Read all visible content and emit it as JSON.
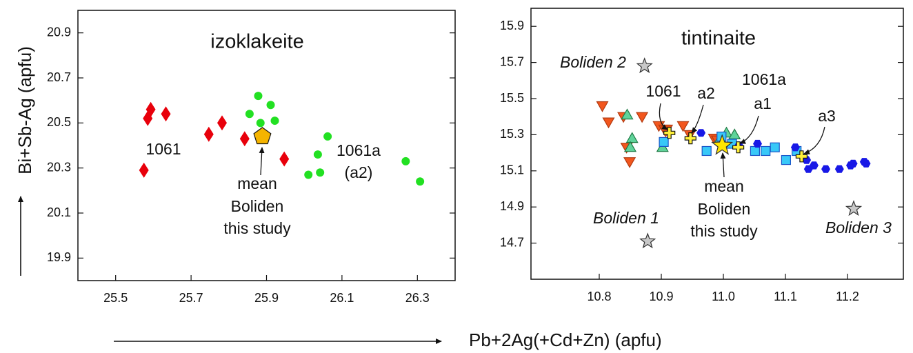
{
  "axis_labels": {
    "x": "Pb+2Ag(+Cd+Zn) (apfu)",
    "y": "Bi+Sb-Ag (apfu)"
  },
  "chart_data": [
    {
      "type": "scatter",
      "title": "izoklakeite",
      "xlim": [
        25.4,
        26.4
      ],
      "ylim": [
        19.8,
        21.0
      ],
      "xticks": [
        25.5,
        25.7,
        25.9,
        26.1,
        26.3
      ],
      "yticks": [
        19.9,
        20.1,
        20.3,
        20.5,
        20.7,
        20.9
      ],
      "series": [
        {
          "marker": "diamond",
          "color": "#e8000b",
          "x": [
            25.575,
            25.585,
            25.593,
            25.633,
            25.747,
            25.782,
            25.842,
            25.947
          ],
          "y": [
            20.29,
            20.52,
            20.56,
            20.54,
            20.45,
            20.5,
            20.43,
            20.34
          ]
        },
        {
          "marker": "circle",
          "color": "#22e022",
          "x": [
            25.878,
            25.855,
            25.911,
            25.884,
            25.922,
            26.062,
            26.036,
            26.011,
            26.042,
            26.269,
            26.307
          ],
          "y": [
            20.62,
            20.54,
            20.58,
            20.5,
            20.51,
            20.44,
            20.36,
            20.27,
            20.28,
            20.33,
            20.24
          ]
        },
        {
          "marker": "pentagon",
          "color": "#f5b400",
          "x": [
            25.889
          ],
          "y": [
            20.44
          ]
        }
      ],
      "annotations": [
        "1061",
        "1061a",
        "(a2)",
        "mean",
        "Boliden",
        "this study"
      ]
    },
    {
      "type": "scatter",
      "title": "tintinaite",
      "xlim": [
        10.69,
        11.29
      ],
      "ylim": [
        14.5,
        16.0
      ],
      "xticks": [
        10.8,
        10.9,
        {
          "value": 11,
          "label": "11.0"
        },
        11.1,
        11.2
      ],
      "yticks": [
        14.7,
        14.9,
        15.1,
        15.3,
        15.5,
        15.7,
        15.9
      ],
      "series": [
        {
          "marker": "tri-down",
          "color": "#f2561d",
          "x": [
            10.805,
            10.815,
            10.839,
            10.869,
            10.896,
            10.905,
            10.909,
            10.935,
            10.849,
            10.844,
            10.946,
            10.985,
            10.99,
            10.907
          ],
          "y": [
            15.46,
            15.37,
            15.4,
            15.4,
            15.35,
            15.33,
            15.33,
            15.35,
            15.15,
            15.23,
            15.3,
            15.28,
            15.27,
            15.32
          ]
        },
        {
          "marker": "tri-up",
          "color": "#5fd39a",
          "x": [
            10.845,
            10.853,
            10.85,
            10.902,
            11.005,
            11.018,
            10.995
          ],
          "y": [
            15.41,
            15.28,
            15.23,
            15.23,
            15.31,
            15.3,
            15.28
          ]
        },
        {
          "marker": "square",
          "color": "#38c8f8",
          "x": [
            10.904,
            10.973,
            10.997,
            11.051,
            11.068,
            11.083,
            11.101,
            11.118,
            11.014
          ],
          "y": [
            15.26,
            15.21,
            15.29,
            15.21,
            15.21,
            15.23,
            15.16,
            15.21,
            15.25
          ]
        },
        {
          "marker": "hexagon",
          "color": "#1818e6",
          "x": [
            10.964,
            11.025,
            11.055,
            11.116,
            11.134,
            11.146,
            11.165,
            11.187,
            11.205,
            11.209,
            11.227,
            11.23,
            11.137
          ],
          "y": [
            15.31,
            15.24,
            15.25,
            15.23,
            15.16,
            15.13,
            15.11,
            15.11,
            15.13,
            15.14,
            15.15,
            15.14,
            15.11
          ]
        },
        {
          "marker": "cross",
          "color": "#fff03a",
          "x": [
            10.913,
            10.947,
            11.024,
            11.126
          ],
          "y": [
            15.31,
            15.28,
            15.23,
            15.18
          ]
        },
        {
          "marker": "star",
          "color": "#ffe600",
          "x": [
            10.998
          ],
          "y": [
            15.24
          ]
        },
        {
          "marker": "star",
          "color": "#c8c8c8",
          "x": [
            10.873,
            10.878,
            11.21
          ],
          "y": [
            15.68,
            14.71,
            14.89
          ]
        }
      ],
      "annotations": [
        "Boliden 2",
        "Boliden 1",
        "Boliden 3",
        "1061",
        "a2",
        "1061a",
        "a1",
        "a3",
        "mean",
        "Boliden",
        "this study"
      ]
    }
  ]
}
